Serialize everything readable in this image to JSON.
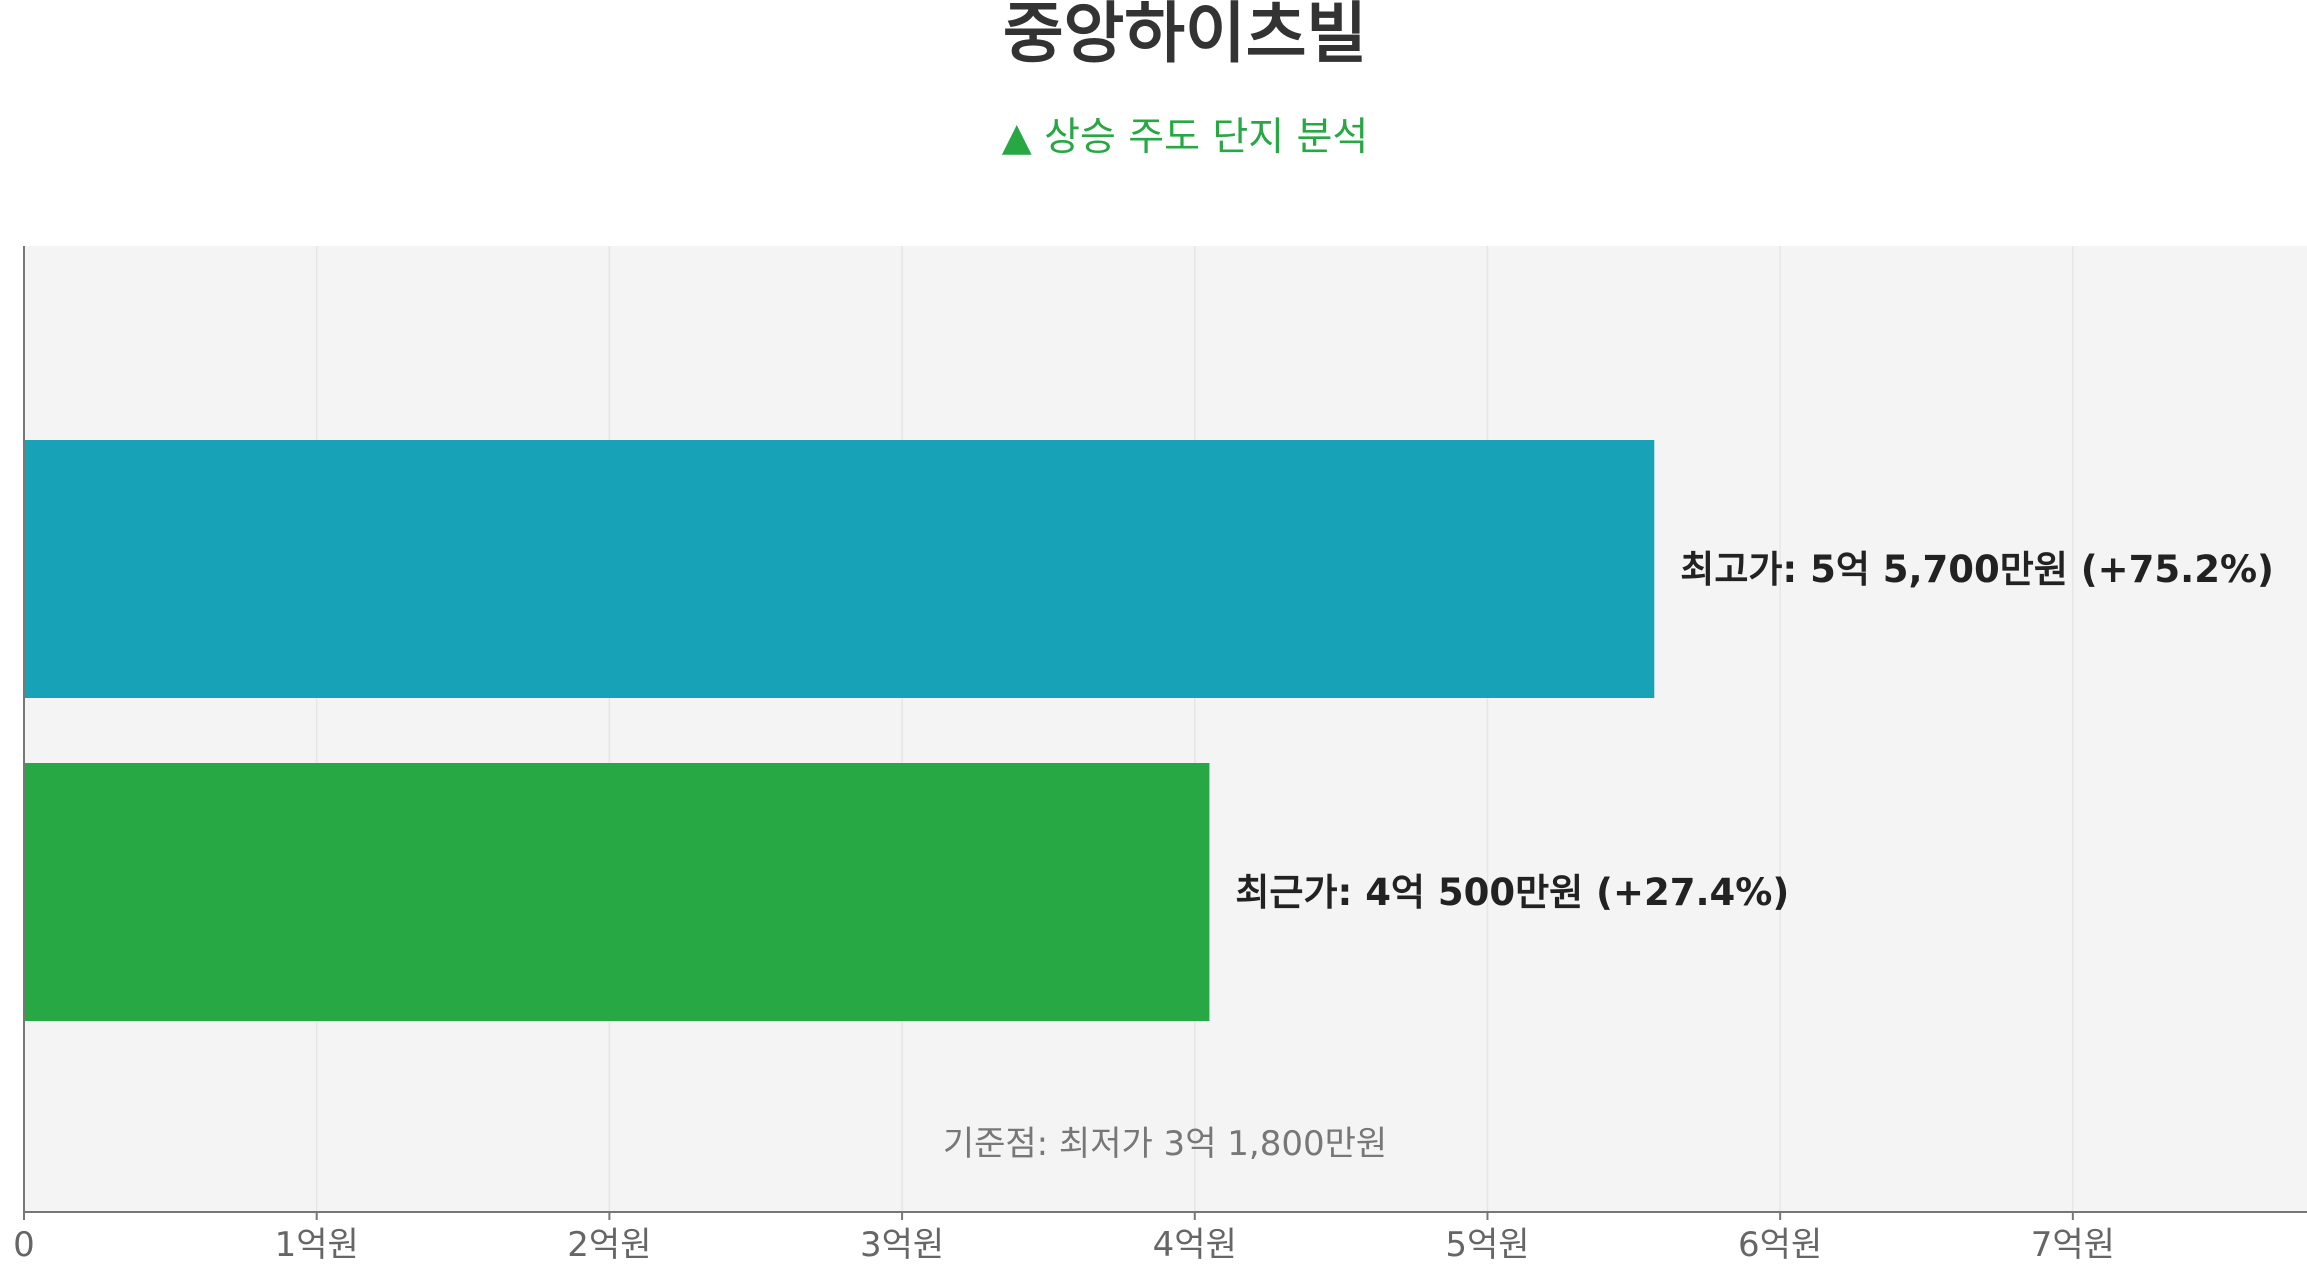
{
  "chart_data": {
    "type": "bar",
    "orientation": "horizontal",
    "title": "중앙하이츠빌",
    "subtitle": "▲ 상승 주도 단지 분석",
    "xlim": [
      0,
      780000000
    ],
    "x_ticks": [
      {
        "value": 0,
        "label": "0"
      },
      {
        "value": 100000000,
        "label": "1억원"
      },
      {
        "value": 200000000,
        "label": "2억원"
      },
      {
        "value": 300000000,
        "label": "3억원"
      },
      {
        "value": 400000000,
        "label": "4억원"
      },
      {
        "value": 500000000,
        "label": "5억원"
      },
      {
        "value": 600000000,
        "label": "6억원"
      },
      {
        "value": 700000000,
        "label": "7억원"
      }
    ],
    "bars": [
      {
        "value": 557000000,
        "label": "최고가: 5억 5,700만원 (+75.2%)",
        "color": "#18a2b8"
      },
      {
        "value": 405000000,
        "label": "최근가: 4억 500만원 (+27.4%)",
        "color": "#28a745"
      }
    ],
    "baseline": {
      "value": 318000000,
      "label": "기준점: 최저가 3억 1,800만원"
    },
    "grid": true,
    "colors": {
      "title": "#333333",
      "subtitle": "#28a745",
      "plot_background": "#f4f4f4",
      "grid": "#e6e6e6",
      "axis": "#777777",
      "tick_label": "#666666",
      "bar_label": "#222222",
      "baseline_label": "#777777"
    }
  }
}
